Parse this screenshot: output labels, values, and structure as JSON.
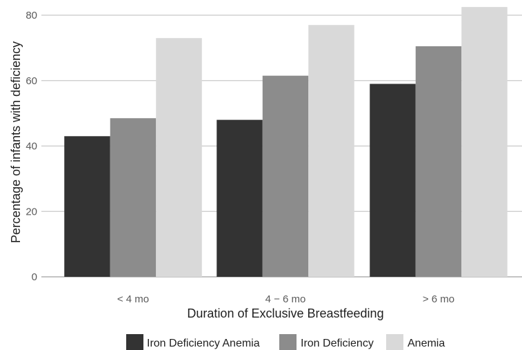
{
  "chart_data": {
    "type": "bar",
    "categories": [
      "< 4 mo",
      "4 − 6 mo",
      "> 6 mo"
    ],
    "series": [
      {
        "name": "Iron Deficiency Anemia",
        "color": "#333333",
        "values": [
          43,
          48,
          59
        ]
      },
      {
        "name": "Iron Deficiency",
        "color": "#8c8c8c",
        "values": [
          48.5,
          61.5,
          70.5
        ]
      },
      {
        "name": "Anemia",
        "color": "#d9d9d9",
        "values": [
          73,
          77,
          82.5
        ]
      }
    ],
    "xlabel": "Duration of Exclusive Breastfeeding",
    "ylabel": "Percentage of infants with deficiency",
    "ylim": [
      0,
      80
    ],
    "yticks": [
      "0",
      "20",
      "40",
      "60",
      "80"
    ],
    "grid": true,
    "legend_position": "bottom"
  }
}
